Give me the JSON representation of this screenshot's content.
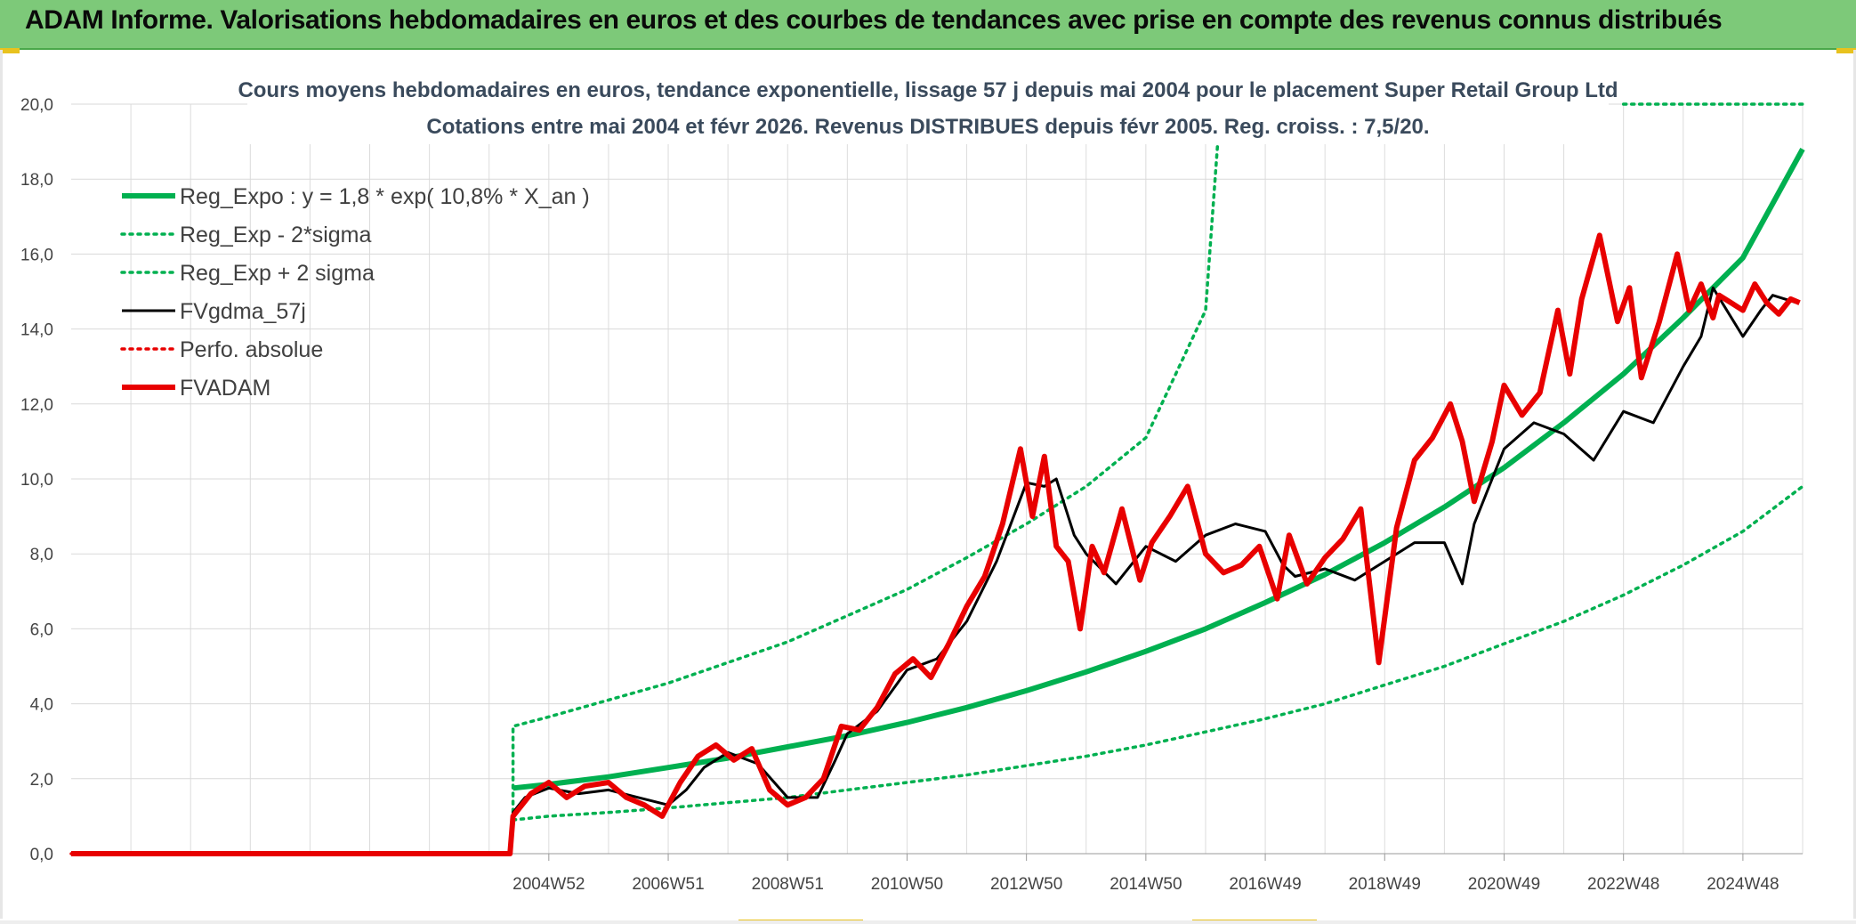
{
  "header": {
    "title": "ADAM Informe. Valorisations hebdomadaires en euros et des courbes de tendances avec prise en compte des revenus connus distribués"
  },
  "colors": {
    "header_bg": "#7dc979",
    "trend": "#00b050",
    "fvgdma": "#000000",
    "fvadam": "#e80000",
    "perfo": "#e80000",
    "grid": "#d9d9d9"
  },
  "chart_data": {
    "type": "line",
    "title": "Cours moyens hebdomadaires en euros, tendance exponentielle, lissage 57 j depuis mai 2004 pour le placement Super Retail Group Ltd",
    "subtitle": "Cotations entre mai 2004 et févr 2026. Revenus DISTRIBUES depuis févr 2005. Reg. croiss. : 7,5/20.",
    "xlabel": "",
    "ylabel": "",
    "ylim": [
      0,
      20
    ],
    "xlim": [
      1997,
      2026
    ],
    "y_ticks": [
      "0,0",
      "2,0",
      "4,0",
      "6,0",
      "8,0",
      "10,0",
      "12,0",
      "14,0",
      "16,0",
      "18,0",
      "20,0"
    ],
    "x_ticks": [
      {
        "label": "2004W52",
        "x": 2005.0
      },
      {
        "label": "2006W51",
        "x": 2007.0
      },
      {
        "label": "2008W51",
        "x": 2009.0
      },
      {
        "label": "2010W50",
        "x": 2011.0
      },
      {
        "label": "2012W50",
        "x": 2013.0
      },
      {
        "label": "2014W50",
        "x": 2015.0
      },
      {
        "label": "2016W49",
        "x": 2017.0
      },
      {
        "label": "2018W49",
        "x": 2019.0
      },
      {
        "label": "2020W49",
        "x": 2021.0
      },
      {
        "label": "2022W48",
        "x": 2023.0
      },
      {
        "label": "2024W48",
        "x": 2025.0
      }
    ],
    "grid": true,
    "legend_position": "top-left",
    "legend": [
      {
        "key": "reg_expo",
        "label": "Reg_Expo : y = 1,8 * exp( 10,8% *  X_an )"
      },
      {
        "key": "reg_minus",
        "label": "Reg_Exp - 2*sigma"
      },
      {
        "key": "reg_plus",
        "label": "Reg_Exp + 2 sigma"
      },
      {
        "key": "fvgdma",
        "label": "FVgdma_57j"
      },
      {
        "key": "perfo",
        "label": "Perfo. absolue"
      },
      {
        "key": "fvadam",
        "label": "FVADAM"
      }
    ],
    "series": [
      {
        "key": "reg_expo",
        "name": "Reg_Expo : y = 1,8 * exp( 10,8% *  X_an )",
        "style": "solid-thick",
        "color": "#00b050",
        "x": [
          2004.4,
          2005,
          2006,
          2007,
          2008,
          2009,
          2010,
          2011,
          2012,
          2013,
          2014,
          2015,
          2016,
          2017,
          2018,
          2019,
          2020,
          2021,
          2022,
          2023,
          2024,
          2025,
          2026
        ],
        "y": [
          1.75,
          1.85,
          2.05,
          2.3,
          2.55,
          2.85,
          3.15,
          3.5,
          3.9,
          4.35,
          4.85,
          5.4,
          6.0,
          6.7,
          7.45,
          8.3,
          9.25,
          10.3,
          11.5,
          12.8,
          14.3,
          15.9,
          18.8
        ]
      },
      {
        "key": "reg_plus",
        "name": "Reg_Exp + 2 sigma",
        "style": "dotted",
        "color": "#00b050",
        "x": [
          2004.4,
          2004.4,
          2005,
          2006,
          2007,
          2008,
          2009,
          2010,
          2011,
          2012,
          2013,
          2014,
          2015,
          2016,
          2016.2
        ],
        "y": [
          0.9,
          3.4,
          3.65,
          4.1,
          4.55,
          5.1,
          5.65,
          6.35,
          7.05,
          7.9,
          8.8,
          9.8,
          11.1,
          14.5,
          18.9
        ],
        "extra_segment": {
          "x": [
            2023.0,
            2026.0
          ],
          "y": [
            20.0,
            20.0
          ]
        }
      },
      {
        "key": "reg_minus",
        "name": "Reg_Exp - 2*sigma",
        "style": "dotted",
        "color": "#00b050",
        "x": [
          2004.4,
          2005,
          2006,
          2007,
          2008,
          2009,
          2010,
          2011,
          2012,
          2013,
          2014,
          2015,
          2016,
          2017,
          2018,
          2019,
          2020,
          2021,
          2022,
          2023,
          2024,
          2025,
          2026
        ],
        "y": [
          0.9,
          1.0,
          1.1,
          1.22,
          1.36,
          1.5,
          1.7,
          1.9,
          2.1,
          2.35,
          2.6,
          2.9,
          3.25,
          3.6,
          4.0,
          4.5,
          5.0,
          5.6,
          6.2,
          6.9,
          7.7,
          8.6,
          9.8
        ]
      },
      {
        "key": "fvgdma",
        "name": "FVgdma_57j",
        "style": "solid",
        "color": "#000000",
        "x": [
          1997.0,
          2004.35,
          2004.4,
          2004.6,
          2005.0,
          2005.5,
          2006.0,
          2006.5,
          2007.0,
          2007.3,
          2007.6,
          2008.0,
          2008.5,
          2009.0,
          2009.5,
          2009.8,
          2010.0,
          2010.5,
          2011.0,
          2011.5,
          2012.0,
          2012.5,
          2013.0,
          2013.3,
          2013.5,
          2013.8,
          2014.0,
          2014.5,
          2015.0,
          2015.5,
          2016.0,
          2016.5,
          2017.0,
          2017.3,
          2017.5,
          2018.0,
          2018.5,
          2019.0,
          2019.5,
          2020.0,
          2020.3,
          2020.5,
          2021.0,
          2021.5,
          2022.0,
          2022.5,
          2023.0,
          2023.5,
          2024.0,
          2024.3,
          2024.5,
          2025.0,
          2025.3,
          2025.5,
          2025.9
        ],
        "y": [
          0.0,
          0.0,
          1.1,
          1.5,
          1.75,
          1.6,
          1.7,
          1.5,
          1.3,
          1.7,
          2.3,
          2.7,
          2.4,
          1.5,
          1.5,
          2.5,
          3.2,
          3.8,
          4.9,
          5.2,
          6.2,
          7.8,
          9.9,
          9.8,
          10.0,
          8.5,
          8.0,
          7.2,
          8.2,
          7.8,
          8.5,
          8.8,
          8.6,
          7.7,
          7.4,
          7.6,
          7.3,
          7.8,
          8.3,
          8.3,
          7.2,
          8.8,
          10.8,
          11.5,
          11.2,
          10.5,
          11.8,
          11.5,
          13.0,
          13.8,
          15.1,
          13.8,
          14.5,
          14.9,
          14.7
        ]
      },
      {
        "key": "perfo",
        "name": "Perfo. absolue",
        "style": "dotted",
        "color": "#e80000",
        "x": [
          1997.0,
          2004.35
        ],
        "y": [
          0.0,
          0.0
        ]
      },
      {
        "key": "fvadam",
        "name": "FVADAM",
        "style": "solid-thick",
        "color": "#e80000",
        "x": [
          1997.0,
          2004.35,
          2004.4,
          2004.7,
          2005.0,
          2005.3,
          2005.6,
          2006.0,
          2006.3,
          2006.6,
          2006.9,
          2007.2,
          2007.5,
          2007.8,
          2008.1,
          2008.4,
          2008.7,
          2009.0,
          2009.3,
          2009.6,
          2009.9,
          2010.2,
          2010.5,
          2010.8,
          2011.1,
          2011.4,
          2011.7,
          2012.0,
          2012.3,
          2012.6,
          2012.9,
          2013.1,
          2013.3,
          2013.5,
          2013.7,
          2013.9,
          2014.1,
          2014.3,
          2014.6,
          2014.9,
          2015.1,
          2015.4,
          2015.7,
          2016.0,
          2016.3,
          2016.6,
          2016.9,
          2017.2,
          2017.4,
          2017.7,
          2018.0,
          2018.3,
          2018.6,
          2018.9,
          2019.2,
          2019.5,
          2019.8,
          2020.1,
          2020.3,
          2020.5,
          2020.8,
          2021.0,
          2021.3,
          2021.6,
          2021.9,
          2022.1,
          2022.3,
          2022.6,
          2022.9,
          2023.1,
          2023.3,
          2023.6,
          2023.9,
          2024.1,
          2024.3,
          2024.5,
          2024.6,
          2024.8,
          2025.0,
          2025.2,
          2025.4,
          2025.6,
          2025.8,
          2025.95
        ],
        "y": [
          0.0,
          0.0,
          1.0,
          1.6,
          1.9,
          1.5,
          1.8,
          1.9,
          1.5,
          1.3,
          1.0,
          1.9,
          2.6,
          2.9,
          2.5,
          2.8,
          1.7,
          1.3,
          1.5,
          2.0,
          3.4,
          3.3,
          3.9,
          4.8,
          5.2,
          4.7,
          5.6,
          6.6,
          7.4,
          8.8,
          10.8,
          9.0,
          10.6,
          8.2,
          7.8,
          6.0,
          8.2,
          7.5,
          9.2,
          7.3,
          8.3,
          9.0,
          9.8,
          8.0,
          7.5,
          7.7,
          8.2,
          6.8,
          8.5,
          7.2,
          7.9,
          8.4,
          9.2,
          5.1,
          8.7,
          10.5,
          11.1,
          12.0,
          11.0,
          9.4,
          11.0,
          12.5,
          11.7,
          12.3,
          14.5,
          12.8,
          14.8,
          16.5,
          14.2,
          15.1,
          12.7,
          14.2,
          16.0,
          14.5,
          15.2,
          14.3,
          14.9,
          14.7,
          14.5,
          15.2,
          14.7,
          14.4,
          14.8,
          14.7
        ]
      }
    ]
  }
}
